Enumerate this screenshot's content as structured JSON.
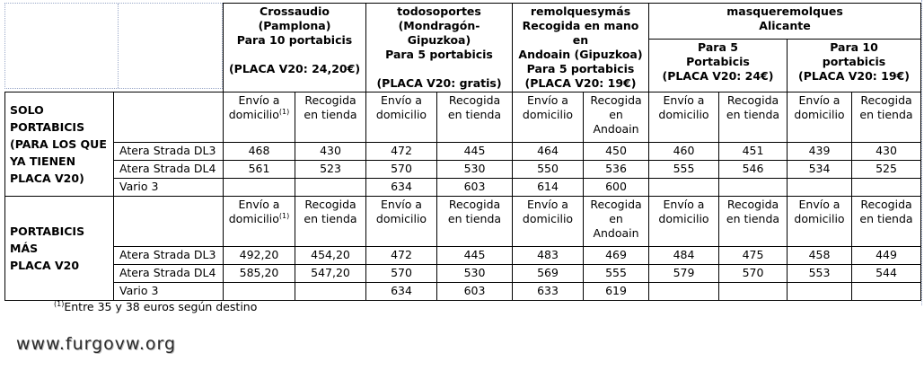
{
  "suppliers": {
    "crossaudio": {
      "name": "Crossaudio",
      "location": "(Pamplona)",
      "capacity": "Para 10 portabicis",
      "plate": "(PLACA V20: 24,20€)"
    },
    "todosoportes": {
      "name": "todosoportes",
      "location": "(Mondragón-Gipuzkoa)",
      "capacity": "Para 5 portabicis",
      "plate": "(PLACA V20: gratis)"
    },
    "remolquesymas": {
      "name": "remolquesymás",
      "line2": "Recogida en mano en",
      "line3": "Andoain (Gipuzkoa)",
      "capacity": "Para 5 portabicis",
      "plate": "(PLACA V20: 19€)"
    },
    "masqueremolques": {
      "name": "masqueremolques",
      "location": "Alicante",
      "sub5": {
        "line1": "Para 5",
        "line2": "Portabicis",
        "plate": "(PLACA V20: 24€)"
      },
      "sub10": {
        "line1": "Para 10",
        "line2": "portabicis",
        "plate": "(PLACA V20: 19€)"
      }
    }
  },
  "col_labels": {
    "envio_1": "Envío a",
    "envio_2": "domicilio",
    "recogida_1": "Recogida",
    "recogida_2": "en tienda",
    "recogida_andoain_1": "Recogida",
    "recogida_andoain_2": "en",
    "recogida_andoain_3": "Andoain",
    "footnote_mark": "(1)"
  },
  "sections": [
    {
      "title_lines": [
        "SOLO",
        "PORTABICIS",
        "(PARA LOS QUE",
        "YA TIENEN",
        "PLACA V20)"
      ],
      "rows": [
        {
          "model": "Atera Strada DL3",
          "values": [
            "468",
            "430",
            "472",
            "445",
            "464",
            "450",
            "460",
            "451",
            "439",
            "430"
          ]
        },
        {
          "model": "Atera Strada DL4",
          "values": [
            "561",
            "523",
            "570",
            "530",
            "550",
            "536",
            "555",
            "546",
            "534",
            "525"
          ]
        },
        {
          "model": "Vario 3",
          "values": [
            "",
            "",
            "634",
            "603",
            "614",
            "600",
            "",
            "",
            "",
            ""
          ]
        }
      ]
    },
    {
      "title_lines": [
        "PORTABICIS MÁS",
        "PLACA V20"
      ],
      "rows": [
        {
          "model": "Atera Strada DL3",
          "values": [
            "492,20",
            "454,20",
            "472",
            "445",
            "483",
            "469",
            "484",
            "475",
            "458",
            "449"
          ]
        },
        {
          "model": "Atera Strada DL4",
          "values": [
            "585,20",
            "547,20",
            "570",
            "530",
            "569",
            "555",
            "579",
            "570",
            "553",
            "544"
          ]
        },
        {
          "model": "Vario 3",
          "values": [
            "",
            "",
            "634",
            "603",
            "633",
            "619",
            "",
            "",
            "",
            ""
          ]
        }
      ]
    }
  ],
  "footnote": {
    "mark": "(1)",
    "text": "Entre 35 y 38 euros según destino"
  },
  "watermark": "www.furgovw.org"
}
